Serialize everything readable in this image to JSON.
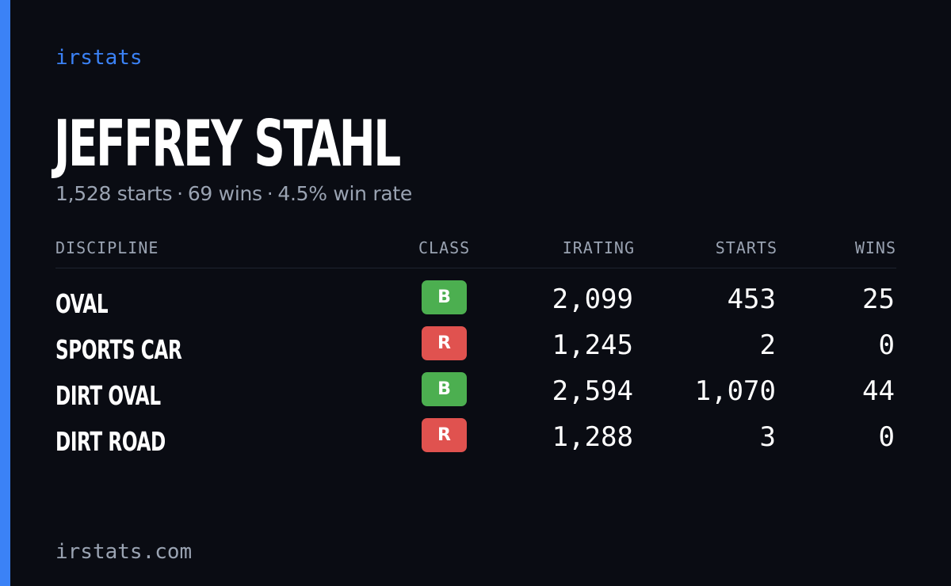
{
  "brand": "irstats",
  "driver": {
    "name": "JEFFREY STAHL",
    "summary": {
      "starts": "1,528 starts",
      "wins": "69 wins",
      "win_rate": "4.5% win rate",
      "separator": "·"
    }
  },
  "table": {
    "headers": {
      "discipline": "DISCIPLINE",
      "class": "CLASS",
      "irating": "IRATING",
      "starts": "STARTS",
      "wins": "WINS"
    },
    "rows": [
      {
        "discipline": "OVAL",
        "class": "B",
        "class_color": "#4caf50",
        "irating": "2,099",
        "starts": "453",
        "wins": "25"
      },
      {
        "discipline": "SPORTS CAR",
        "class": "R",
        "class_color": "#e0524f",
        "irating": "1,245",
        "starts": "2",
        "wins": "0"
      },
      {
        "discipline": "DIRT OVAL",
        "class": "B",
        "class_color": "#4caf50",
        "irating": "2,594",
        "starts": "1,070",
        "wins": "44"
      },
      {
        "discipline": "DIRT ROAD",
        "class": "R",
        "class_color": "#e0524f",
        "irating": "1,288",
        "starts": "3",
        "wins": "0"
      }
    ]
  },
  "footer": "irstats.com",
  "colors": {
    "background": "#0a0c13",
    "accent": "#3b82f6",
    "muted_text": "#9aa3b2",
    "class_b": "#4caf50",
    "class_r": "#e0524f"
  }
}
